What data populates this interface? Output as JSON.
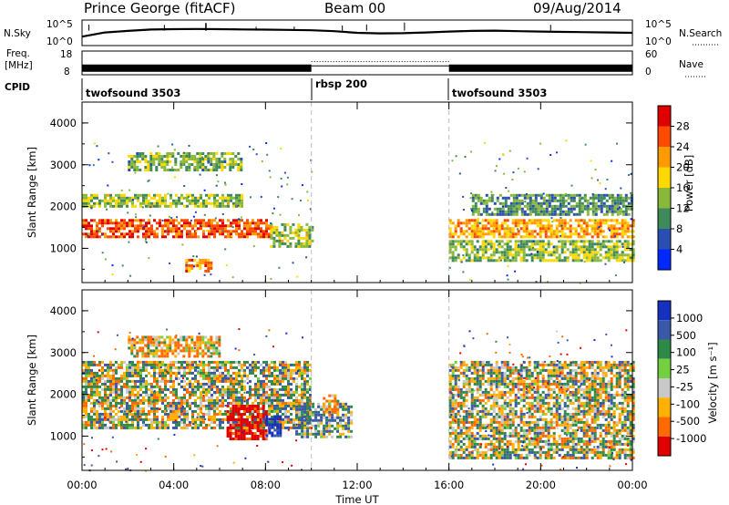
{
  "header": {
    "station": "Prince George (fitACF)",
    "beam": "Beam 00",
    "date": "09/Aug/2014"
  },
  "sky_panel": {
    "left_label": "N.Sky",
    "left_ticks": [
      "10^5",
      "10^0"
    ],
    "right_label": "N.Search",
    "right_ticks": [
      "10^5",
      "10^0"
    ]
  },
  "freq_panel": {
    "left_label_1": "Freq.",
    "left_label_2": "[MHz]",
    "left_ticks": [
      "18",
      "8"
    ],
    "right_label": "Nave",
    "right_ticks": [
      "60",
      "0"
    ]
  },
  "cpid_panel": {
    "label": "CPID",
    "segments": [
      {
        "name": "twofsound 3503",
        "start_hour": 0,
        "end_hour": 10
      },
      {
        "name": "rbsp 200",
        "start_hour": 10,
        "end_hour": 16
      },
      {
        "name": "twofsound 3503",
        "start_hour": 16,
        "end_hour": 24
      }
    ]
  },
  "power_panel": {
    "ylabel": "Slant Range [km]",
    "yticks": [
      "4000",
      "3000",
      "2000",
      "1000"
    ],
    "colorbar_label": "Power [dB]",
    "colorbar_ticks": [
      "28",
      "24",
      "20",
      "16",
      "12",
      "8",
      "4"
    ],
    "colors": [
      "#0028ff",
      "#2a4fb0",
      "#3f8a5a",
      "#8ab83a",
      "#ffd800",
      "#ff9a00",
      "#ff4a00",
      "#e00000"
    ]
  },
  "velocity_panel": {
    "ylabel": "Slant Range [km]",
    "yticks": [
      "4000",
      "3000",
      "2000",
      "1000"
    ],
    "colorbar_label": "Velocity [m s⁻¹]",
    "colorbar_ticks": [
      "1000",
      "500",
      "100",
      "25",
      "-25",
      "-100",
      "-500",
      "-1000"
    ],
    "colors": [
      "#1630c0",
      "#3a58a8",
      "#2f8a4a",
      "#74d040",
      "#c8c8c8",
      "#ffb000",
      "#ff6a00",
      "#e00000"
    ]
  },
  "xaxis": {
    "ticks": [
      "00:00",
      "04:00",
      "08:00",
      "12:00",
      "16:00",
      "20:00",
      "00:00"
    ],
    "label": "Time UT"
  },
  "chart_data": [
    {
      "type": "line",
      "name": "N.Sky / N.Search noise",
      "x_range_hours": [
        0,
        24
      ],
      "y_scale": "log",
      "ylim": [
        1,
        100000
      ],
      "x": [
        0,
        1,
        2,
        3,
        4,
        5,
        6,
        7,
        8,
        9,
        10,
        11,
        12,
        13,
        14,
        15,
        16,
        17,
        18,
        19,
        20,
        21,
        22,
        23,
        24
      ],
      "y": [
        30,
        300,
        700,
        1500,
        1800,
        2000,
        1800,
        1600,
        1400,
        1200,
        1000,
        600,
        250,
        180,
        200,
        300,
        500,
        700,
        800,
        600,
        500,
        400,
        350,
        300,
        250
      ]
    },
    {
      "type": "line",
      "name": "Frequency",
      "ylim": [
        8,
        18
      ],
      "x": [
        0,
        10,
        10,
        16,
        16,
        24
      ],
      "y": [
        11,
        11,
        13,
        13,
        11,
        11
      ]
    },
    {
      "type": "heatmap",
      "name": "Power",
      "x_range_hours": [
        0,
        24
      ],
      "y_range_km": [
        180,
        4500
      ],
      "color_range_db": [
        0,
        30
      ],
      "regions": [
        {
          "t": [
            0,
            8.2
          ],
          "km": [
            1300,
            1700
          ],
          "db": 24
        },
        {
          "t": [
            8.2,
            10
          ],
          "km": [
            1050,
            1600
          ],
          "db": 14
        },
        {
          "t": [
            0,
            7
          ],
          "km": [
            2000,
            2300
          ],
          "db": 14
        },
        {
          "t": [
            2,
            7
          ],
          "km": [
            2900,
            3300
          ],
          "db": 12
        },
        {
          "t": [
            4.5,
            5.6
          ],
          "km": [
            450,
            750
          ],
          "db": 22
        },
        {
          "t": [
            16,
            24
          ],
          "km": [
            1300,
            1700
          ],
          "db": 20
        },
        {
          "t": [
            16,
            24
          ],
          "km": [
            700,
            1200
          ],
          "db": 13
        },
        {
          "t": [
            17,
            24
          ],
          "km": [
            1800,
            2300
          ],
          "db": 10
        }
      ]
    },
    {
      "type": "heatmap",
      "name": "Velocity",
      "x_range_hours": [
        0,
        24
      ],
      "y_range_km": [
        180,
        4500
      ],
      "color_range_ms": [
        -1000,
        1000
      ],
      "regions": [
        {
          "t": [
            0,
            10
          ],
          "km": [
            1200,
            2800
          ],
          "ms": 0
        },
        {
          "t": [
            16,
            24
          ],
          "km": [
            500,
            2800
          ],
          "ms": 0
        },
        {
          "t": [
            6.3,
            8
          ],
          "km": [
            950,
            1750
          ],
          "ms": -600
        },
        {
          "t": [
            8,
            8.7
          ],
          "km": [
            1000,
            1500
          ],
          "ms": 600
        },
        {
          "t": [
            9.3,
            11.8
          ],
          "km": [
            1000,
            1800
          ],
          "ms": 80
        },
        {
          "t": [
            10.5,
            11.2
          ],
          "km": [
            1500,
            2000
          ],
          "ms": -100
        },
        {
          "t": [
            2,
            6
          ],
          "km": [
            2900,
            3400
          ],
          "ms": -80
        }
      ]
    }
  ]
}
